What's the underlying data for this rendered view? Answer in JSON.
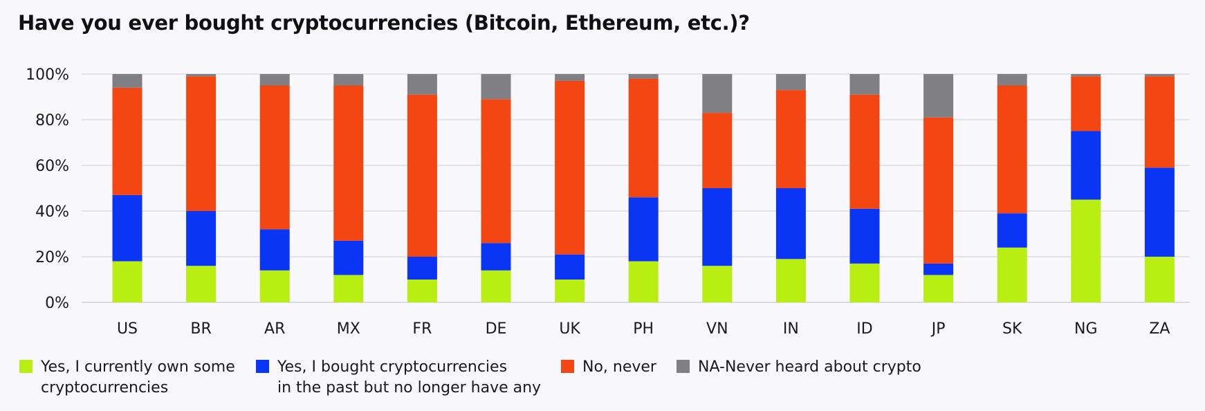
{
  "chart_data": {
    "type": "bar",
    "stacked": true,
    "title": "Have you ever bought cryptocurrencies (Bitcoin, Ethereum, etc.)?",
    "categories": [
      "US",
      "BR",
      "AR",
      "MX",
      "FR",
      "DE",
      "UK",
      "PH",
      "VN",
      "IN",
      "ID",
      "JP",
      "SK",
      "NG",
      "ZA"
    ],
    "ylim": [
      0,
      100
    ],
    "yticks": [
      "0%",
      "20%",
      "40%",
      "60%",
      "80%",
      "100%"
    ],
    "grid": true,
    "legend_position": "bottom",
    "series": [
      {
        "name": "Yes, I currently own some cryptocurrencies",
        "label_lines": [
          "Yes, I currently own some",
          "cryptocurrencies"
        ],
        "color": "#b8ee12",
        "values": [
          18,
          16,
          14,
          12,
          10,
          14,
          10,
          18,
          16,
          19,
          17,
          12,
          24,
          45,
          20
        ]
      },
      {
        "name": "Yes, I bought cryptocurrencies in the past but no longer have any",
        "label_lines": [
          "Yes, I bought cryptocurrencies",
          "in the past but no longer have any"
        ],
        "color": "#0a35f5",
        "values": [
          29,
          24,
          18,
          15,
          10,
          12,
          11,
          28,
          34,
          31,
          24,
          5,
          15,
          30,
          39
        ]
      },
      {
        "name": "No, never",
        "label_lines": [
          "No, never"
        ],
        "color": "#f44612",
        "values": [
          47,
          59,
          63,
          68,
          71,
          63,
          76,
          52,
          33,
          43,
          50,
          64,
          56,
          24,
          40
        ]
      },
      {
        "name": "NA-Never heard about crypto",
        "label_lines": [
          "NA-Never heard about crypto"
        ],
        "color": "#7f7f84",
        "values": [
          6,
          1,
          5,
          5,
          9,
          11,
          3,
          2,
          17,
          7,
          9,
          19,
          5,
          1,
          1
        ]
      }
    ]
  }
}
